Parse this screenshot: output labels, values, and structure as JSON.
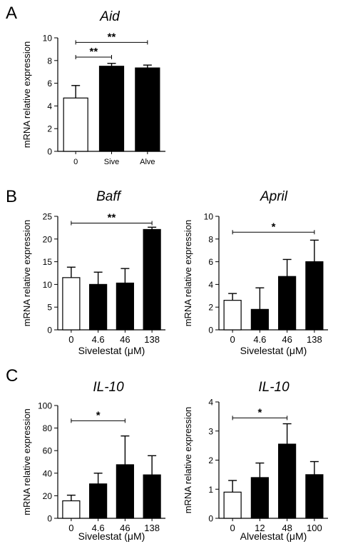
{
  "panel_letters": [
    "A",
    "B",
    "C"
  ],
  "colors": {
    "control_fill": "#ffffff",
    "treated_fill": "#000000",
    "stroke": "#000000"
  },
  "chart_data": [
    {
      "panel": "A",
      "type": "bar",
      "title": "Aid",
      "xlabel": "",
      "ylabel": "mRNA relative expression",
      "ylim": [
        0,
        10
      ],
      "yticks": [
        "0",
        "2",
        "4",
        "6",
        "8",
        "10"
      ],
      "categories": [
        "0",
        "Sive",
        "Alve"
      ],
      "values": [
        4.7,
        7.5,
        7.35
      ],
      "errors": [
        1.1,
        0.25,
        0.25
      ],
      "fills": [
        "white",
        "black",
        "black"
      ],
      "significance": [
        {
          "from": 0,
          "to": 1,
          "y": 8.3,
          "label": "**"
        },
        {
          "from": 0,
          "to": 2,
          "y": 9.6,
          "label": "**"
        }
      ]
    },
    {
      "panel": "B",
      "type": "bar",
      "title": "Baff",
      "xlabel": "Sivelestat (μM)",
      "ylabel": "mRNA relative expression",
      "ylim": [
        0,
        25
      ],
      "yticks": [
        "0",
        "5",
        "10",
        "15",
        "20",
        "25"
      ],
      "categories": [
        "0",
        "4.6",
        "46",
        "138"
      ],
      "values": [
        11.5,
        10.0,
        10.3,
        22.1
      ],
      "errors": [
        2.3,
        2.7,
        3.2,
        0.5
      ],
      "fills": [
        "white",
        "black",
        "black",
        "black"
      ],
      "significance": [
        {
          "from": 0,
          "to": 3,
          "y": 23.5,
          "label": "**"
        }
      ]
    },
    {
      "panel": "B",
      "type": "bar",
      "title": "April",
      "xlabel": "Sivelestat (μM)",
      "ylabel": "mRNA relative expression",
      "ylim": [
        0,
        10
      ],
      "yticks": [
        "0",
        "2",
        "4",
        "6",
        "8",
        "10"
      ],
      "categories": [
        "0",
        "4.6",
        "46",
        "138"
      ],
      "values": [
        2.6,
        1.8,
        4.7,
        6.0
      ],
      "errors": [
        0.6,
        1.9,
        1.5,
        1.9
      ],
      "fills": [
        "white",
        "black",
        "black",
        "black"
      ],
      "significance": [
        {
          "from": 0,
          "to": 3,
          "y": 8.6,
          "label": "*"
        }
      ]
    },
    {
      "panel": "C",
      "type": "bar",
      "title": "IL-10",
      "xlabel": "Sivelestat (μM)",
      "ylabel": "mRNA relative expression",
      "ylim": [
        0,
        100
      ],
      "yticks": [
        "0",
        "20",
        "40",
        "60",
        "80",
        "100"
      ],
      "categories": [
        "0",
        "4.6",
        "46",
        "138"
      ],
      "values": [
        15.5,
        30.5,
        47.5,
        38.5
      ],
      "errors": [
        5.0,
        9.5,
        25.5,
        17.0
      ],
      "fills": [
        "white",
        "black",
        "black",
        "black"
      ],
      "significance": [
        {
          "from": 0,
          "to": 2,
          "y": 86.5,
          "label": "*"
        }
      ]
    },
    {
      "panel": "C",
      "type": "bar",
      "title": "IL-10",
      "xlabel": "Alvelestat (μM)",
      "ylabel": "mRNA relative expression",
      "ylim": [
        0,
        4
      ],
      "yticks": [
        "0",
        "1",
        "2",
        "3",
        "4"
      ],
      "categories": [
        "0",
        "12",
        "48",
        "100"
      ],
      "values": [
        0.9,
        1.4,
        2.55,
        1.5
      ],
      "errors": [
        0.4,
        0.5,
        0.7,
        0.45
      ],
      "fills": [
        "white",
        "black",
        "black",
        "black"
      ],
      "significance": [
        {
          "from": 0,
          "to": 2,
          "y": 3.45,
          "label": "*"
        }
      ]
    }
  ]
}
